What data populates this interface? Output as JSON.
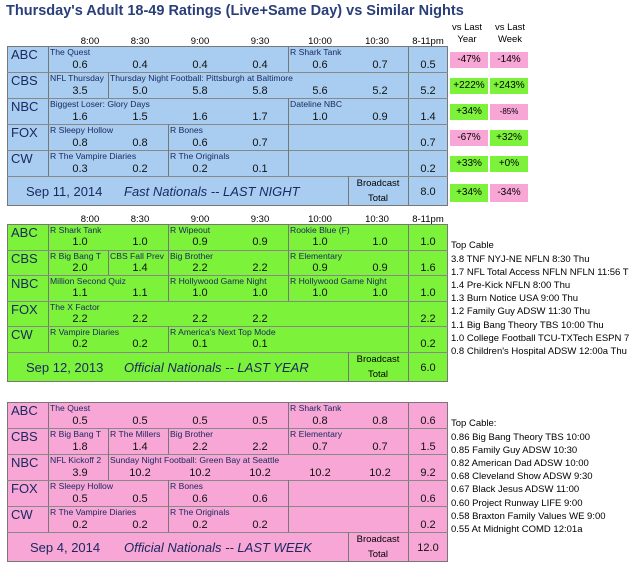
{
  "title": "Thursday's Adult 18-49 Ratings (Live+Same Day) vs Similar Nights",
  "time_headers": [
    "8:00",
    "8:30",
    "9:00",
    "9:30",
    "10:00",
    "10:30",
    "8-11pm"
  ],
  "vs_last_year": "vs Last Year",
  "vs_last_week": "vs Last Week",
  "panel1": {
    "networks": [
      "ABC",
      "CBS",
      "NBC",
      "FOX",
      "CW"
    ],
    "programs": {
      "abc": [
        "The Quest",
        "R Shark Tank"
      ],
      "cbs": [
        "NFL Thursday",
        "Thursday Night Football: Pittsburgh at Baltimore"
      ],
      "nbc": [
        "Biggest Loser: Glory Days",
        "Dateline NBC"
      ],
      "fox": [
        "R Sleepy Hollow",
        "R Bones"
      ],
      "cw": [
        "R The Vampire Diaries",
        "R The Originals"
      ]
    },
    "ratings": {
      "abc": [
        "0.6",
        "0.4",
        "0.4",
        "0.4",
        "0.6",
        "0.7",
        "0.5"
      ],
      "cbs": [
        "3.5",
        "5.0",
        "5.8",
        "5.8",
        "5.6",
        "5.2",
        "5.2"
      ],
      "nbc": [
        "1.6",
        "1.5",
        "1.6",
        "1.7",
        "1.0",
        "0.9",
        "1.4"
      ],
      "fox": [
        "0.8",
        "0.8",
        "0.6",
        "0.7",
        "",
        "",
        "0.7"
      ],
      "cw": [
        "0.3",
        "0.2",
        "0.2",
        "0.1",
        "",
        "",
        "0.2"
      ]
    },
    "vs_year": [
      "-47%",
      "+222%",
      "+34%",
      "-67%",
      "+33%"
    ],
    "vs_week": [
      "-14%",
      "+243%",
      "-85%",
      "+32%",
      "+0%"
    ],
    "footer_date": "Sep 11, 2014",
    "footer_label": "Fast Nationals -- LAST NIGHT",
    "broadcast": "Broadcast",
    "total": "Total",
    "total_value": "8.0",
    "total_vs_year": "+34%",
    "total_vs_week": "-34%"
  },
  "panel2": {
    "networks": [
      "ABC",
      "CBS",
      "NBC",
      "FOX",
      "CW"
    ],
    "programs": {
      "abc": [
        "R Shark Tank",
        "R Wipeout",
        "Rookie Blue (F)"
      ],
      "cbs": [
        "R Big Bang T",
        "CBS Fall Prev",
        "Big Brother",
        "R Elementary"
      ],
      "nbc": [
        "Million Second Quiz",
        "R Hollywood Game Night",
        "R Hollywood Game Night"
      ],
      "fox": [
        "The X Factor"
      ],
      "cw": [
        "R Vampire Diaries",
        "R America's Next Top Mode"
      ]
    },
    "ratings": {
      "abc": [
        "1.0",
        "1.0",
        "0.9",
        "0.9",
        "1.0",
        "1.0",
        "1.0"
      ],
      "cbs": [
        "2.0",
        "1.4",
        "2.2",
        "2.2",
        "0.9",
        "0.9",
        "1.6"
      ],
      "nbc": [
        "1.1",
        "1.1",
        "1.0",
        "1.0",
        "1.0",
        "1.0",
        "1.0"
      ],
      "fox": [
        "2.2",
        "2.2",
        "2.2",
        "2.2",
        "",
        "",
        "2.2"
      ],
      "cw": [
        "0.2",
        "0.2",
        "0.1",
        "0.1",
        "",
        "",
        "0.2"
      ]
    },
    "footer_date": "Sep 12, 2013",
    "footer_label": "Official Nationals -- LAST YEAR",
    "broadcast": "Broadcast",
    "total": "Total",
    "total_value": "6.0",
    "top_cable_title": "Top Cable",
    "top_cable": [
      "3.8 TNF NYJ-NE NFLN 8:30 Thu",
      "1.7 NFL Total Access NFLN NFLN 11:56 T",
      "1.4 Pre-Kick NFLN 8:00 Thu",
      "1.3 Burn Notice USA 9:00 Thu",
      "1.2 Family Guy ADSW 11:30 Thu",
      "1.1 Big Bang Theory TBS 10:00 Thu",
      "1.0 College Football TCU-TXTech ESPN 7",
      "0.8 Children's Hospital ADSW 12:00a Thu"
    ]
  },
  "panel3": {
    "networks": [
      "ABC",
      "CBS",
      "NBC",
      "FOX",
      "CW"
    ],
    "programs": {
      "abc": [
        "The Quest",
        "R Shark Tank"
      ],
      "cbs": [
        "R Big Bang T",
        "R The Millers",
        "Big Brother",
        "R Elementary"
      ],
      "nbc": [
        "NFL Kickoff 2",
        "Sunday Night Football: Green Bay at Seattle"
      ],
      "fox": [
        "R Sleepy Hollow",
        "R Bones"
      ],
      "cw": [
        "R The Vampire Diaries",
        "R The Originals"
      ]
    },
    "ratings": {
      "abc": [
        "0.5",
        "0.5",
        "0.5",
        "0.5",
        "0.8",
        "0.8",
        "0.6"
      ],
      "cbs": [
        "1.8",
        "1.4",
        "2.2",
        "2.2",
        "0.7",
        "0.7",
        "1.5"
      ],
      "nbc": [
        "3.9",
        "10.2",
        "10.2",
        "10.2",
        "10.2",
        "10.2",
        "9.2"
      ],
      "fox": [
        "0.5",
        "0.5",
        "0.6",
        "0.6",
        "",
        "",
        "0.6"
      ],
      "cw": [
        "0.2",
        "0.2",
        "0.2",
        "0.2",
        "",
        "",
        "0.2"
      ]
    },
    "footer_date": "Sep 4, 2014",
    "footer_label": "Official Nationals -- LAST WEEK",
    "broadcast": "Broadcast",
    "total": "Total",
    "total_value": "12.0",
    "top_cable_title": "Top Cable:",
    "top_cable": [
      "0.86 Big Bang Theory TBS 10:00",
      "0.85 Family Guy ADSW 10:30",
      "0.82 American Dad ADSW 10:00",
      "0.68 Cleveland Show ADSW 9:30",
      "0.67 Black Jesus ADSW 11:00",
      "0.60 Project Runway LIFE 9:00",
      "0.58 Braxton Family Values WE 9:00",
      "0.55 At Midnight COMD 12:01a"
    ]
  },
  "colors": {
    "blue": "#a9cdf1",
    "green": "#7cf23a",
    "pink": "#f7a6d6",
    "up_green": "#7cf23a",
    "down_pink": "#f7a6d6",
    "title": "#2a3f79"
  }
}
